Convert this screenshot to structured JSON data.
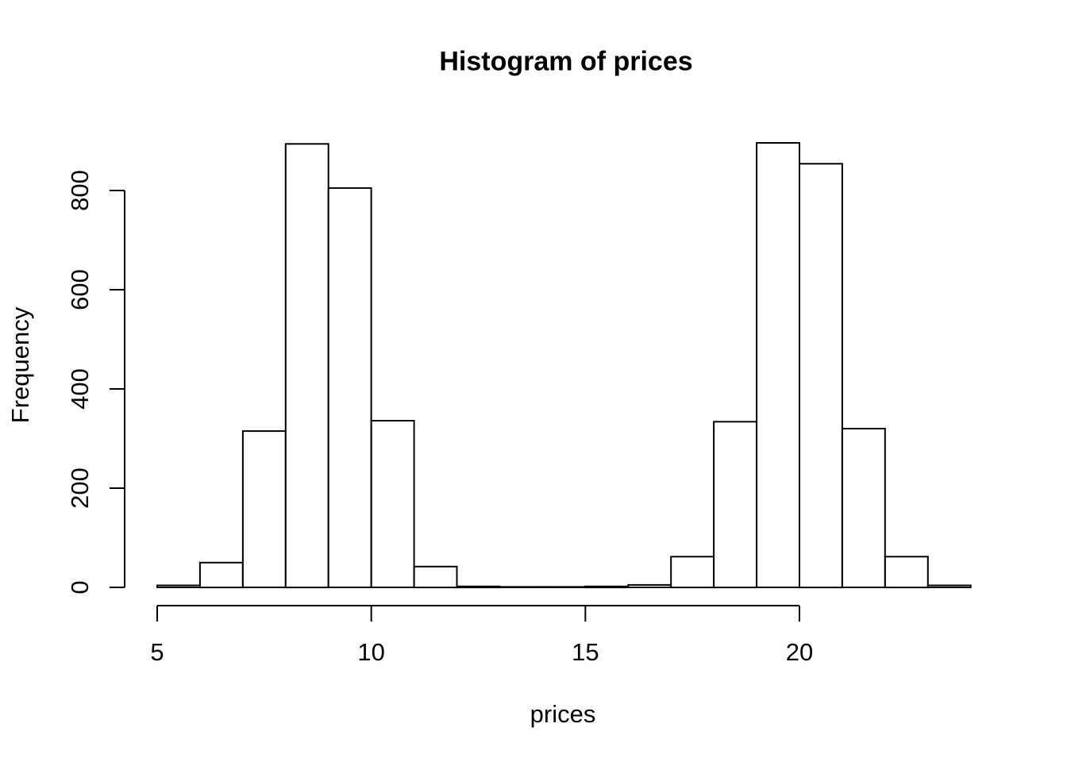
{
  "title": "Histogram of prices",
  "x_axis": {
    "label": "prices",
    "tick_labels": [
      "5",
      "10",
      "15",
      "20"
    ]
  },
  "y_axis": {
    "label": "Frequency",
    "tick_labels": [
      "0",
      "200",
      "400",
      "600",
      "800"
    ]
  },
  "colors": {
    "background": "#ffffff",
    "bar_fill": "#ffffff",
    "bar_stroke": "#000000",
    "axis": "#000000",
    "text": "#000000"
  },
  "chart_data": {
    "type": "bar",
    "subtype": "histogram",
    "title": "Histogram of prices",
    "xlabel": "prices",
    "ylabel": "Frequency",
    "bin_width": 1,
    "bin_edges": [
      5,
      6,
      7,
      8,
      9,
      10,
      11,
      12,
      13,
      14,
      15,
      16,
      17,
      18,
      19,
      20,
      21,
      22,
      23,
      24
    ],
    "counts": [
      4,
      50,
      315,
      894,
      805,
      336,
      42,
      2,
      1,
      1,
      2,
      5,
      62,
      334,
      896,
      854,
      320,
      62,
      4
    ],
    "x_ticks": [
      5,
      10,
      15,
      20
    ],
    "y_ticks": [
      0,
      200,
      400,
      600,
      800
    ],
    "xlim": [
      5,
      24
    ],
    "ylim": [
      0,
      800
    ],
    "grid": false,
    "legend": false,
    "bar_fill": "#ffffff",
    "bar_stroke": "#000000"
  }
}
